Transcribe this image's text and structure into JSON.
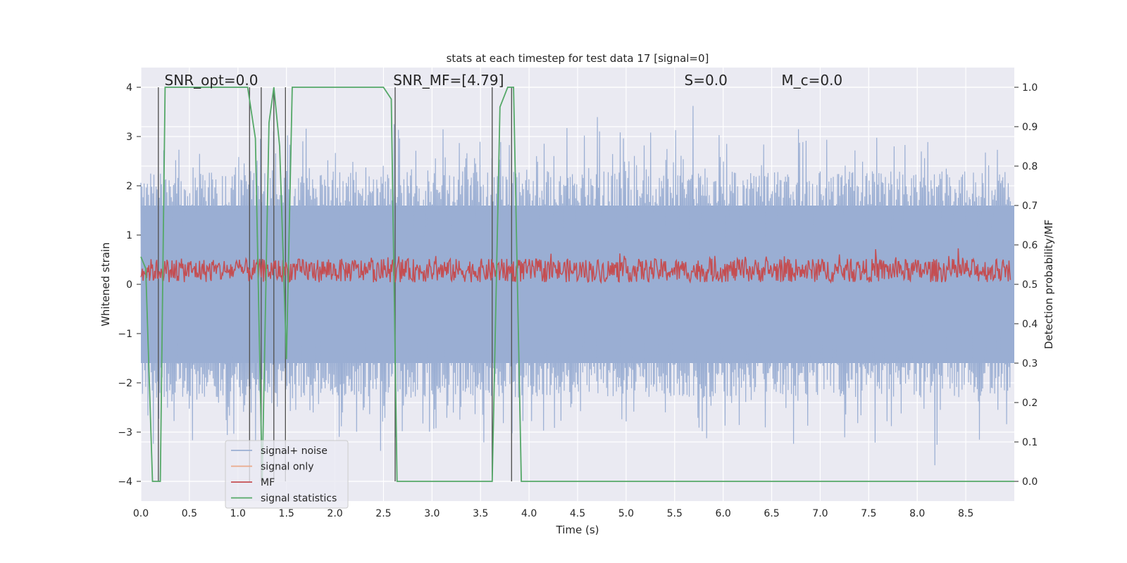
{
  "chart_data": {
    "type": "line",
    "title": "stats at each timestep for test data 17 [signal=0]",
    "xlabel": "Time (s)",
    "ylabel": "Whitened strain",
    "y2label": "Detection probability/MF",
    "xlim": [
      0,
      9.0
    ],
    "ylim": [
      -4.4,
      4.4
    ],
    "y2lim": [
      -0.05,
      1.05
    ],
    "xticks": [
      0.0,
      0.5,
      1.0,
      1.5,
      2.0,
      2.5,
      3.0,
      3.5,
      4.0,
      4.5,
      5.0,
      5.5,
      6.0,
      6.5,
      7.0,
      7.5,
      8.0,
      8.5
    ],
    "xtick_labels": [
      "0.0",
      "0.5",
      "1.0",
      "1.5",
      "2.0",
      "2.5",
      "3.0",
      "3.5",
      "4.0",
      "4.5",
      "5.0",
      "5.5",
      "6.0",
      "6.5",
      "7.0",
      "7.5",
      "8.0",
      "8.5"
    ],
    "yticks": [
      -4,
      -3,
      -2,
      -1,
      0,
      1,
      2,
      3,
      4
    ],
    "ytick_labels": [
      "−4",
      "−3",
      "−2",
      "−1",
      "0",
      "1",
      "2",
      "3",
      "4"
    ],
    "y2ticks": [
      0.0,
      0.1,
      0.2,
      0.3,
      0.4,
      0.5,
      0.6,
      0.7,
      0.8,
      0.9,
      1.0
    ],
    "y2tick_labels": [
      "0.0",
      "0.1",
      "0.2",
      "0.3",
      "0.4",
      "0.5",
      "0.6",
      "0.7",
      "0.8",
      "0.9",
      "1.0"
    ],
    "grid": true,
    "legend_position": "lower-left",
    "annotations": [
      {
        "text": "SNR_opt=0.0",
        "x": 0.2,
        "y": 4.1
      },
      {
        "text": "SNR_MF=[4.79]",
        "x": 2.6,
        "y": 4.1
      },
      {
        "text": "S=0.0",
        "x": 5.6,
        "y": 4.1
      },
      {
        "text": "M_c=0.0",
        "x": 6.6,
        "y": 4.1
      }
    ],
    "series": [
      {
        "name": "signal+ noise",
        "color": "#9aaed3",
        "axis": "left",
        "style": "noise band, approx ±2 with spikes to ±3.5"
      },
      {
        "name": "signal only",
        "color": "#eaa98a",
        "axis": "left",
        "values": []
      },
      {
        "name": "MF",
        "color": "#c44e52",
        "axis": "right",
        "style": "noisy trace between 0.5 and 0.6"
      },
      {
        "name": "signal statistics",
        "color": "#55a868",
        "axis": "right",
        "x": [
          0.0,
          0.05,
          0.12,
          0.2,
          0.25,
          1.1,
          1.18,
          1.25,
          1.32,
          1.37,
          1.43,
          1.5,
          1.56,
          1.6,
          2.5,
          2.58,
          2.64,
          2.7,
          2.76,
          3.62,
          3.7,
          3.78,
          3.84,
          3.92,
          4.0,
          5.0,
          6.0,
          7.0,
          8.0,
          9.0
        ],
        "values": [
          0.57,
          0.54,
          0.0,
          0.0,
          1.0,
          1.0,
          0.87,
          0.0,
          0.91,
          1.0,
          0.85,
          0.31,
          1.0,
          1.0,
          1.0,
          0.97,
          0.0,
          0.0,
          0.0,
          0.0,
          0.95,
          1.0,
          1.0,
          0.0,
          0.0,
          0.0,
          0.0,
          0.0,
          0.0,
          0.0
        ]
      },
      {
        "name": "event markers",
        "color": "#555555",
        "axis": "right",
        "x": [
          0.18,
          1.12,
          1.24,
          1.37,
          1.49,
          2.62,
          3.62,
          3.82
        ]
      }
    ]
  }
}
